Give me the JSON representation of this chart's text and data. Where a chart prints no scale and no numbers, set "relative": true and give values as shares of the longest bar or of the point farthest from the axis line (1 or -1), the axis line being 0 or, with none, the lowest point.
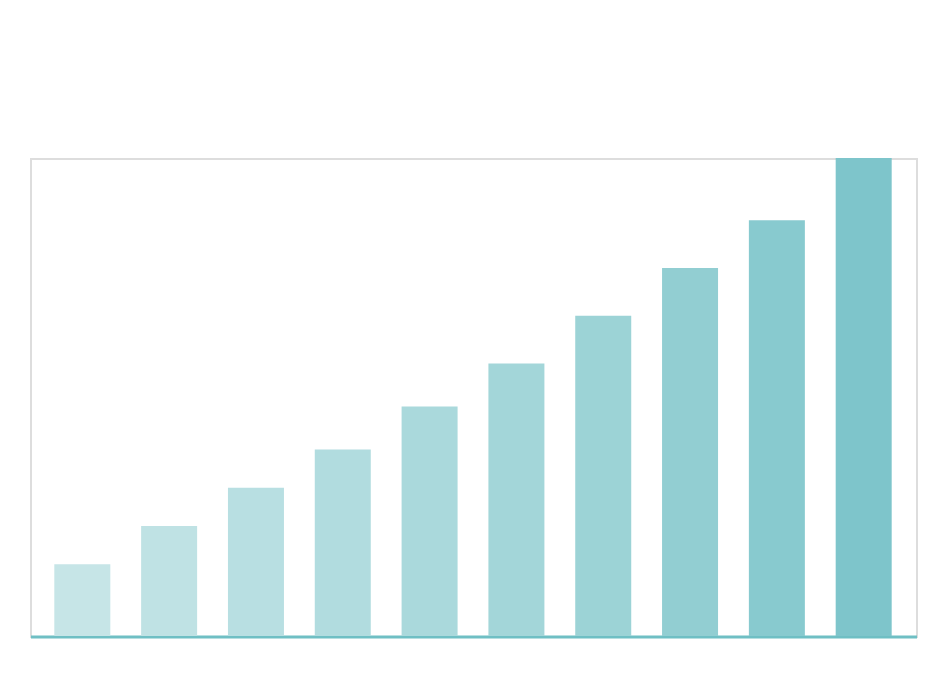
{
  "chart_data": {
    "type": "bar",
    "relative": true,
    "categories": [
      null,
      null,
      null,
      null,
      null,
      null,
      null,
      null,
      null,
      null
    ],
    "values": [
      0.15,
      0.23,
      0.31,
      0.39,
      0.48,
      0.57,
      0.67,
      0.77,
      0.87,
      1
    ],
    "colors": [
      "#c6e5e7",
      "#bfe2e4",
      "#b8dfe2",
      "#b1dcdf",
      "#aad9dc",
      "#a3d6d9",
      "#9cd3d6",
      "#92ced2",
      "#88cacf",
      "#7ec5cb"
    ]
  }
}
